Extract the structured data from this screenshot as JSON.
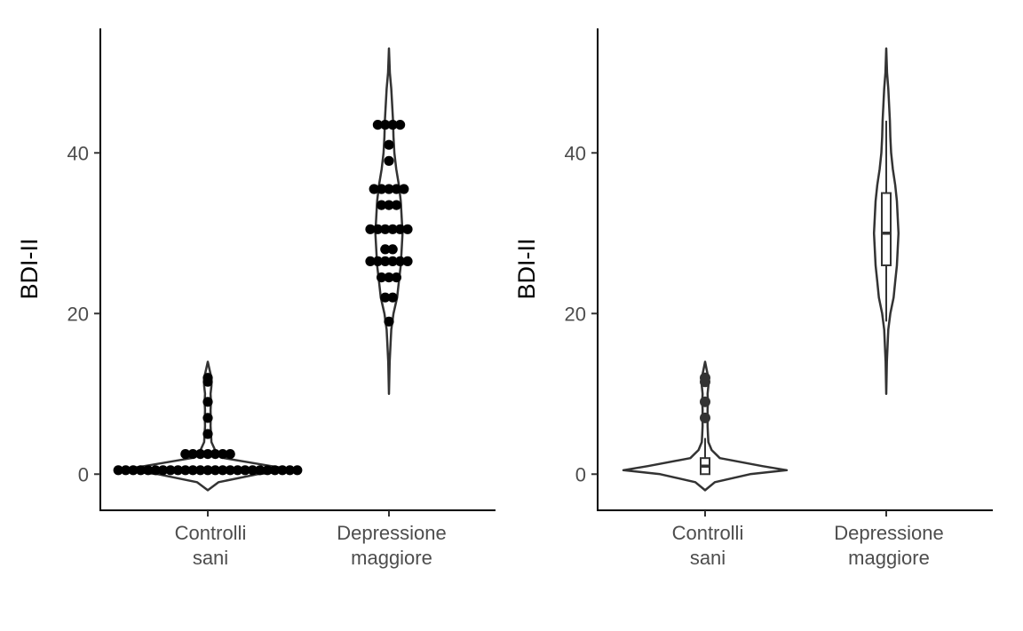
{
  "chart_data": [
    {
      "type": "violin",
      "panel": "left",
      "overlay": "dotplot",
      "title": "",
      "xlabel": "",
      "ylabel": "BDI-II",
      "ylim": [
        -4.5,
        55.5
      ],
      "yticks": [
        0,
        20,
        40
      ],
      "grid": false,
      "categories": [
        {
          "lines": [
            "Controlli",
            "sani"
          ]
        },
        {
          "lines": [
            "Depressione",
            "maggiore"
          ]
        }
      ],
      "violins": [
        {
          "category": 0,
          "min": -2,
          "max": 14,
          "profile": [
            [
              -2,
              0
            ],
            [
              -1,
              12
            ],
            [
              0,
              55
            ],
            [
              0.5,
              100
            ],
            [
              1,
              70
            ],
            [
              2,
              18
            ],
            [
              3,
              8
            ],
            [
              4,
              4
            ],
            [
              5,
              3.5
            ],
            [
              6,
              3
            ],
            [
              7,
              3.2
            ],
            [
              8,
              3
            ],
            [
              9,
              3.5
            ],
            [
              10,
              3
            ],
            [
              11,
              4
            ],
            [
              12,
              4
            ],
            [
              13,
              2
            ],
            [
              14,
              0
            ]
          ]
        },
        {
          "category": 1,
          "min": 10,
          "max": 53,
          "profile": [
            [
              10,
              0
            ],
            [
              14,
              0.8
            ],
            [
              18,
              2.5
            ],
            [
              20,
              5
            ],
            [
              22,
              9
            ],
            [
              24,
              11
            ],
            [
              26,
              13
            ],
            [
              28,
              14
            ],
            [
              30,
              15
            ],
            [
              32,
              14
            ],
            [
              34,
              13
            ],
            [
              36,
              11
            ],
            [
              38,
              8
            ],
            [
              40,
              6
            ],
            [
              42,
              5
            ],
            [
              44,
              4.5
            ],
            [
              46,
              3.5
            ],
            [
              48,
              2.5
            ],
            [
              50,
              1
            ],
            [
              53,
              0
            ]
          ]
        }
      ],
      "dot_rows": [
        {
          "category": 0,
          "y": 0.5,
          "count": 25
        },
        {
          "category": 0,
          "y": 2.5,
          "count": 7
        },
        {
          "category": 0,
          "y": 5,
          "count": 1
        },
        {
          "category": 0,
          "y": 7,
          "count": 1
        },
        {
          "category": 0,
          "y": 9,
          "count": 1
        },
        {
          "category": 0,
          "y": 11.5,
          "count": 1
        },
        {
          "category": 0,
          "y": 12,
          "count": 1
        },
        {
          "category": 1,
          "y": 19,
          "count": 1
        },
        {
          "category": 1,
          "y": 22,
          "count": 2
        },
        {
          "category": 1,
          "y": 24.5,
          "count": 3
        },
        {
          "category": 1,
          "y": 26.5,
          "count": 6
        },
        {
          "category": 1,
          "y": 28,
          "count": 2
        },
        {
          "category": 1,
          "y": 30.5,
          "count": 6
        },
        {
          "category": 1,
          "y": 33.5,
          "count": 3
        },
        {
          "category": 1,
          "y": 35.5,
          "count": 5
        },
        {
          "category": 1,
          "y": 39,
          "count": 1
        },
        {
          "category": 1,
          "y": 41,
          "count": 1
        },
        {
          "category": 1,
          "y": 43.5,
          "count": 4
        }
      ]
    },
    {
      "type": "violin",
      "panel": "right",
      "overlay": "boxplot",
      "title": "",
      "xlabel": "",
      "ylabel": "BDI-II",
      "ylim": [
        -4.5,
        55.5
      ],
      "yticks": [
        0,
        20,
        40
      ],
      "grid": false,
      "categories": [
        {
          "lines": [
            "Controlli",
            "sani"
          ]
        },
        {
          "lines": [
            "Depressione",
            "maggiore"
          ]
        }
      ],
      "violins": [
        {
          "category": 0,
          "min": -2,
          "max": 14,
          "profile": [
            [
              -2,
              0
            ],
            [
              -1,
              12
            ],
            [
              0,
              55
            ],
            [
              0.5,
              100
            ],
            [
              1,
              70
            ],
            [
              2,
              18
            ],
            [
              3,
              8
            ],
            [
              4,
              4
            ],
            [
              5,
              3.5
            ],
            [
              6,
              3
            ],
            [
              7,
              3.2
            ],
            [
              8,
              3
            ],
            [
              9,
              3.5
            ],
            [
              10,
              3
            ],
            [
              11,
              4
            ],
            [
              12,
              4
            ],
            [
              13,
              2
            ],
            [
              14,
              0
            ]
          ]
        },
        {
          "category": 1,
          "min": 10,
          "max": 53,
          "profile": [
            [
              10,
              0
            ],
            [
              14,
              0.8
            ],
            [
              18,
              2.5
            ],
            [
              20,
              5
            ],
            [
              22,
              9
            ],
            [
              24,
              11
            ],
            [
              26,
              13
            ],
            [
              28,
              14
            ],
            [
              30,
              15
            ],
            [
              32,
              14
            ],
            [
              34,
              13
            ],
            [
              36,
              11
            ],
            [
              38,
              8
            ],
            [
              40,
              6
            ],
            [
              42,
              5
            ],
            [
              44,
              4.5
            ],
            [
              46,
              3.5
            ],
            [
              48,
              2.5
            ],
            [
              50,
              1
            ],
            [
              53,
              0
            ]
          ]
        }
      ],
      "boxes": [
        {
          "category": 0,
          "whisker_low": 0,
          "q1": 0,
          "median": 1,
          "q3": 2,
          "whisker_high": 4.5
        },
        {
          "category": 1,
          "whisker_low": 19,
          "q1": 26,
          "median": 30,
          "q3": 35,
          "whisker_high": 44
        }
      ],
      "outliers": [
        {
          "category": 0,
          "y": 7
        },
        {
          "category": 0,
          "y": 9
        },
        {
          "category": 0,
          "y": 11.5
        },
        {
          "category": 0,
          "y": 12
        }
      ]
    }
  ]
}
